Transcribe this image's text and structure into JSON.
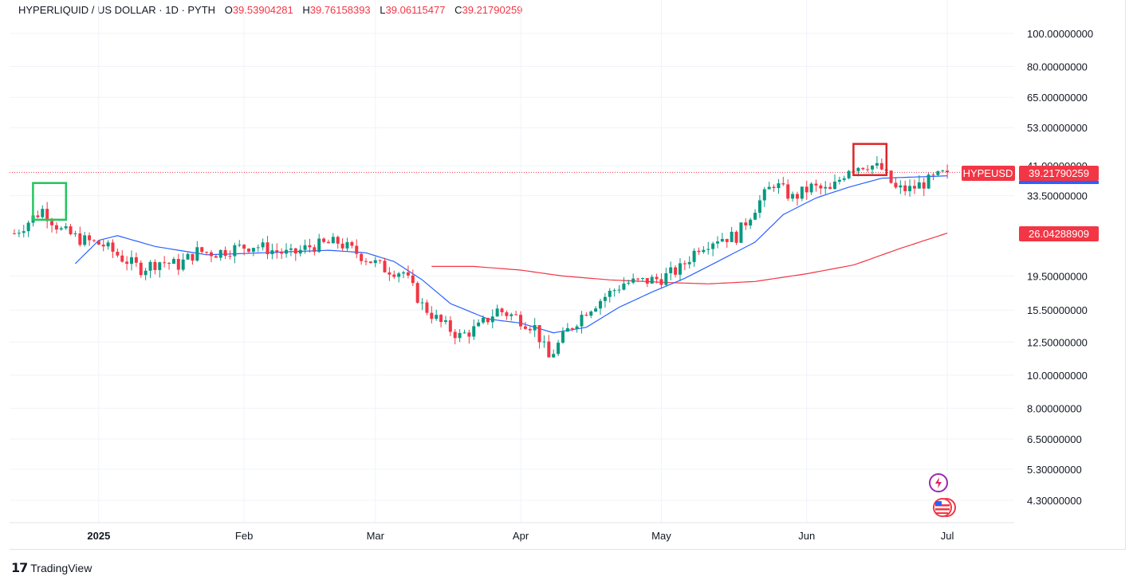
{
  "legend": {
    "symbol": "HYPERLIQUID / US DOLLAR · 1D · PYTH",
    "open_key": "O",
    "open": "39.53904281",
    "high_key": "H",
    "high": "39.76158393",
    "low_key": "L",
    "low": "39.06115477",
    "close_key": "C",
    "close": "39.21790259"
  },
  "price_tags": {
    "ticker": "HYPEUSD",
    "last_price": "39.21790259",
    "ma_long_value": "26.04288909"
  },
  "watermark": "TradingView",
  "colors": {
    "up": "#089981",
    "down": "#f23645",
    "ma_short": "#2962ff",
    "ma_long": "#f23645",
    "highlight_green": "#22c55e",
    "highlight_red": "#dc2626"
  },
  "chart_data": {
    "type": "candlestick",
    "y_scale": "log",
    "y_ticks": [
      "100.00000000",
      "80.00000000",
      "65.00000000",
      "53.00000000",
      "41.00000000",
      "33.50000000",
      "19.50000000",
      "15.50000000",
      "12.50000000",
      "10.00000000",
      "8.00000000",
      "6.50000000",
      "5.30000000",
      "4.30000000"
    ],
    "y_tick_values": [
      100,
      80,
      65,
      53,
      41,
      33.5,
      19.5,
      15.5,
      12.5,
      10,
      8,
      6.5,
      5.3,
      4.3
    ],
    "x_ticks": [
      {
        "label": "2025",
        "date": "2025-01-01",
        "bold": true
      },
      {
        "label": "Feb",
        "date": "2025-02-01",
        "bold": false
      },
      {
        "label": "Mar",
        "date": "2025-03-01",
        "bold": false
      },
      {
        "label": "Apr",
        "date": "2025-04-01",
        "bold": false
      },
      {
        "label": "May",
        "date": "2025-05-01",
        "bold": false
      },
      {
        "label": "Jun",
        "date": "2025-06-01",
        "bold": false
      },
      {
        "label": "Jul",
        "date": "2025-07-01",
        "bold": false
      }
    ],
    "start_date": "2024-12-14",
    "anchors": [
      [
        "2024-12-14",
        26
      ],
      [
        "2024-12-20",
        30.5
      ],
      [
        "2024-12-24",
        26.5
      ],
      [
        "2024-12-28",
        25
      ],
      [
        "2025-01-02",
        24
      ],
      [
        "2025-01-06",
        22
      ],
      [
        "2025-01-10",
        20.5
      ],
      [
        "2025-01-14",
        21.5
      ],
      [
        "2025-01-18",
        21
      ],
      [
        "2025-01-22",
        23
      ],
      [
        "2025-01-26",
        22.8
      ],
      [
        "2025-01-30",
        23.5
      ],
      [
        "2025-02-03",
        24
      ],
      [
        "2025-02-07",
        23.2
      ],
      [
        "2025-02-11",
        22.5
      ],
      [
        "2025-02-15",
        23.8
      ],
      [
        "2025-02-21",
        24.5
      ],
      [
        "2025-02-27",
        22
      ],
      [
        "2025-03-03",
        20.5
      ],
      [
        "2025-03-07",
        20
      ],
      [
        "2025-03-11",
        16
      ],
      [
        "2025-03-15",
        14.2
      ],
      [
        "2025-03-19",
        13
      ],
      [
        "2025-03-23",
        13.8
      ],
      [
        "2025-03-27",
        15.5
      ],
      [
        "2025-03-31",
        14.8
      ],
      [
        "2025-04-04",
        13.8
      ],
      [
        "2025-04-07",
        11.2
      ],
      [
        "2025-04-11",
        13.5
      ],
      [
        "2025-04-15",
        15.5
      ],
      [
        "2025-04-19",
        17
      ],
      [
        "2025-04-23",
        18.6
      ],
      [
        "2025-04-27",
        18.8
      ],
      [
        "2025-05-01",
        19.2
      ],
      [
        "2025-05-05",
        20.5
      ],
      [
        "2025-05-09",
        23.8
      ],
      [
        "2025-05-13",
        25.2
      ],
      [
        "2025-05-17",
        25.5
      ],
      [
        "2025-05-21",
        31
      ],
      [
        "2025-05-25",
        36.5
      ],
      [
        "2025-05-29",
        33
      ],
      [
        "2025-06-02",
        35.5
      ],
      [
        "2025-06-06",
        34.5
      ],
      [
        "2025-06-10",
        40.5
      ],
      [
        "2025-06-14",
        41.5
      ],
      [
        "2025-06-17",
        40
      ],
      [
        "2025-06-20",
        35
      ],
      [
        "2025-06-23",
        35
      ],
      [
        "2025-06-27",
        37
      ],
      [
        "2025-07-01",
        39.2
      ]
    ],
    "ma_short_anchors": [
      [
        "2024-12-27",
        21.2
      ],
      [
        "2025-01-01",
        24.8
      ],
      [
        "2025-01-05",
        25.6
      ],
      [
        "2025-01-13",
        23.8
      ],
      [
        "2025-01-24",
        22.5
      ],
      [
        "2025-02-05",
        22.8
      ],
      [
        "2025-02-19",
        23.2
      ],
      [
        "2025-02-27",
        22.8
      ],
      [
        "2025-03-05",
        21.5
      ],
      [
        "2025-03-11",
        19
      ],
      [
        "2025-03-17",
        16.2
      ],
      [
        "2025-03-25",
        14.6
      ],
      [
        "2025-04-01",
        14.2
      ],
      [
        "2025-04-08",
        13.3
      ],
      [
        "2025-04-15",
        13.8
      ],
      [
        "2025-04-22",
        15.8
      ],
      [
        "2025-04-29",
        17.5
      ],
      [
        "2025-05-06",
        19.2
      ],
      [
        "2025-05-13",
        21.5
      ],
      [
        "2025-05-21",
        24.5
      ],
      [
        "2025-05-27",
        29.5
      ],
      [
        "2025-06-03",
        33.0
      ],
      [
        "2025-06-10",
        35.5
      ],
      [
        "2025-06-17",
        37.7
      ],
      [
        "2025-06-24",
        38.0
      ],
      [
        "2025-07-01",
        38.3
      ]
    ],
    "ma_long_anchors": [
      [
        "2025-03-13",
        20.8
      ],
      [
        "2025-03-22",
        20.8
      ],
      [
        "2025-04-01",
        20.3
      ],
      [
        "2025-04-10",
        19.5
      ],
      [
        "2025-04-20",
        19.0
      ],
      [
        "2025-05-01",
        18.7
      ],
      [
        "2025-05-11",
        18.5
      ],
      [
        "2025-05-21",
        18.8
      ],
      [
        "2025-06-01",
        19.8
      ],
      [
        "2025-06-11",
        21.0
      ],
      [
        "2025-06-21",
        23.5
      ],
      [
        "2025-07-01",
        26.04
      ]
    ],
    "last_price": 39.2179,
    "ma_long_value": 26.0429,
    "highlight_boxes": [
      {
        "color": "green",
        "start": "2024-12-19",
        "end": "2024-12-24",
        "high": 36.5,
        "low": 28.5
      },
      {
        "color": "red",
        "start": "2025-06-12",
        "end": "2025-06-17",
        "high": 47.5,
        "low": 38.5
      }
    ]
  }
}
